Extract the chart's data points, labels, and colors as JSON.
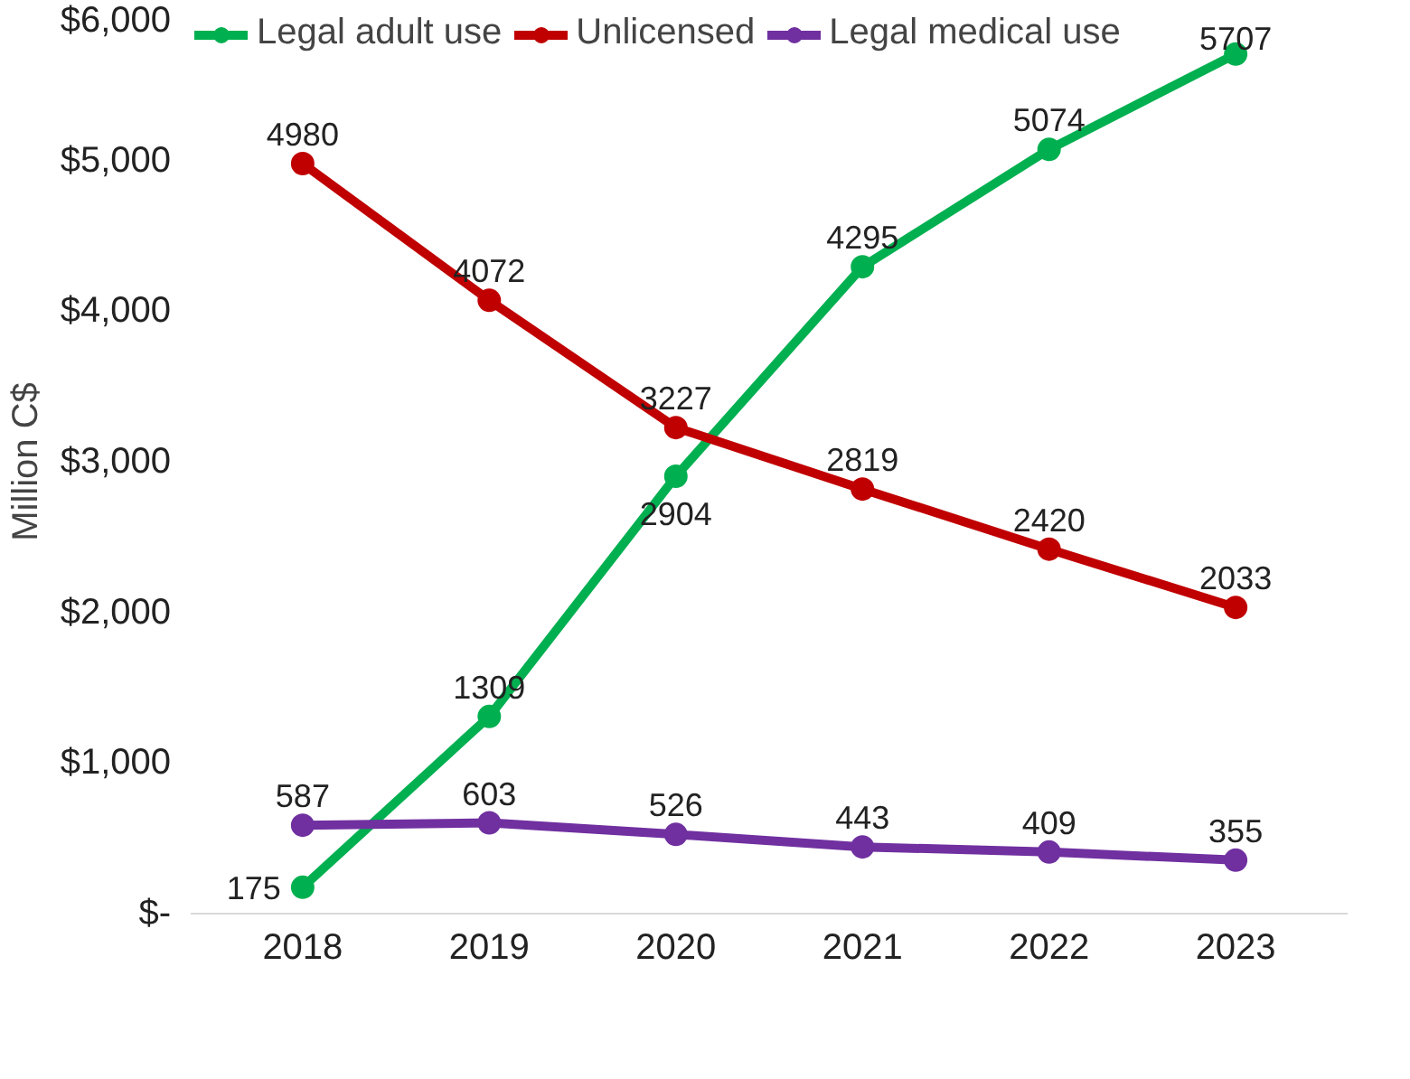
{
  "chart_data": {
    "type": "line",
    "ylabel": "Million C$",
    "categories": [
      "2018",
      "2019",
      "2020",
      "2021",
      "2022",
      "2023"
    ],
    "series": [
      {
        "name": "Legal adult use",
        "color": "#00b050",
        "values": [
          175,
          1309,
          2904,
          4295,
          5074,
          5707
        ]
      },
      {
        "name": "Unlicensed",
        "color": "#c00000",
        "values": [
          4980,
          4072,
          3227,
          2819,
          2420,
          2033
        ]
      },
      {
        "name": "Legal medical use",
        "color": "#7030a0",
        "values": [
          587,
          603,
          526,
          443,
          409,
          355
        ]
      }
    ],
    "ylim": [
      0,
      6000
    ],
    "yticks": [
      {
        "value": 0,
        "label": "$-"
      },
      {
        "value": 1000,
        "label": "$1,000"
      },
      {
        "value": 2000,
        "label": "$2,000"
      },
      {
        "value": 3000,
        "label": "$3,000"
      },
      {
        "value": 4000,
        "label": "$4,000"
      },
      {
        "value": 5000,
        "label": "$5,000"
      },
      {
        "value": 6000,
        "label": "$6,000"
      }
    ],
    "grid": false,
    "legend": "top",
    "marker": "circle",
    "line_style": "solid",
    "data_labels": true
  }
}
